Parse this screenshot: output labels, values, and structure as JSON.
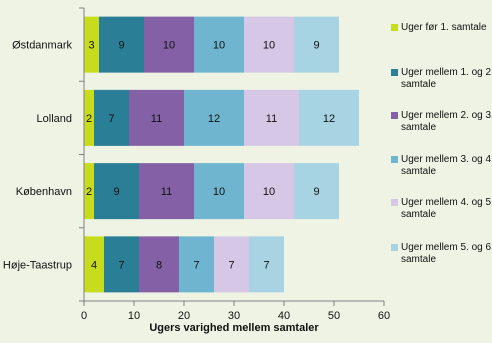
{
  "chart_data": {
    "type": "bar",
    "orientation": "horizontal",
    "stacked": true,
    "title": "",
    "xlabel": "Ugers varighed mellem samtaler",
    "ylabel": "",
    "xlim": [
      0,
      60
    ],
    "xticks": [
      0,
      10,
      20,
      30,
      40,
      50,
      60
    ],
    "grid": false,
    "legend_position": "right",
    "categories": [
      "Østdanmark",
      "Lolland",
      "København",
      "Høje-Taastrup"
    ],
    "series": [
      {
        "name": "Uger før 1. samtale",
        "color": "#c8dc1e",
        "values": [
          3,
          2,
          2,
          4
        ]
      },
      {
        "name": "Uger mellem 1. og 2. samtale",
        "color": "#2a7e96",
        "values": [
          9,
          7,
          9,
          7
        ]
      },
      {
        "name": "Uger mellem 2. og 3. samtale",
        "color": "#8461a6",
        "values": [
          10,
          11,
          11,
          8
        ]
      },
      {
        "name": "Uger mellem 3. og 4. samtale",
        "color": "#6fb5cf",
        "values": [
          10,
          12,
          10,
          7
        ]
      },
      {
        "name": "Uger mellem 4. og 5. samtale",
        "color": "#d6c7e6",
        "values": [
          10,
          11,
          10,
          7
        ]
      },
      {
        "name": "Uger mellem 5. og 6. samtale",
        "color": "#a8d3e3",
        "values": [
          9,
          12,
          9,
          7
        ]
      }
    ]
  }
}
